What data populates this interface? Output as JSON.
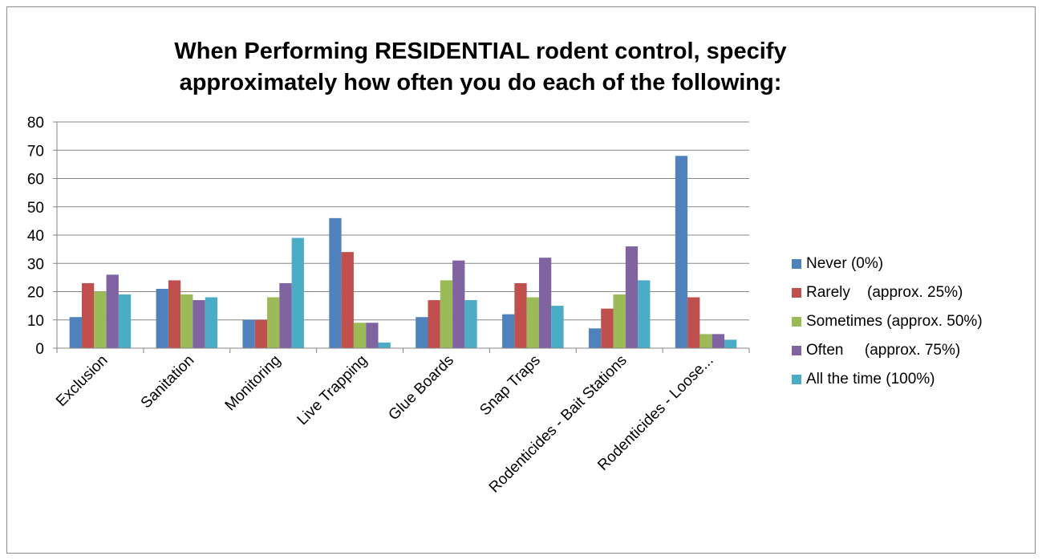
{
  "chart_data": {
    "type": "bar",
    "title": [
      "When Performing RESIDENTIAL rodent control, specify",
      "approximately how often you do each of the following:"
    ],
    "xlabel": "",
    "ylabel": "",
    "ylim": [
      0,
      80
    ],
    "yticks": [
      0,
      10,
      20,
      30,
      40,
      50,
      60,
      70,
      80
    ],
    "grid": "horizontal",
    "legend_position": "right",
    "categories": [
      "Exclusion",
      "Sanitation",
      "Monitoring",
      "Live Trapping",
      "Glue Boards",
      "Snap Traps",
      "Rodenticides - Bait Stations",
      "Rodenticides - Loose..."
    ],
    "series": [
      {
        "name": "Never (0%)",
        "color": "#4F81BD",
        "values": [
          11,
          21,
          10,
          46,
          11,
          12,
          7,
          68
        ]
      },
      {
        "name": "Rarely    (approx. 25%)",
        "color": "#C0504D",
        "values": [
          23,
          24,
          10,
          34,
          17,
          23,
          14,
          18
        ]
      },
      {
        "name": "Sometimes (approx. 50%)",
        "color": "#9BBB59",
        "values": [
          20,
          19,
          18,
          9,
          24,
          18,
          19,
          5
        ]
      },
      {
        "name": "Often     (approx. 75%)",
        "color": "#8064A2",
        "values": [
          26,
          17,
          23,
          9,
          31,
          32,
          36,
          5
        ]
      },
      {
        "name": "All the time (100%)",
        "color": "#4BACC6",
        "values": [
          19,
          18,
          39,
          2,
          17,
          15,
          24,
          3
        ]
      }
    ]
  }
}
